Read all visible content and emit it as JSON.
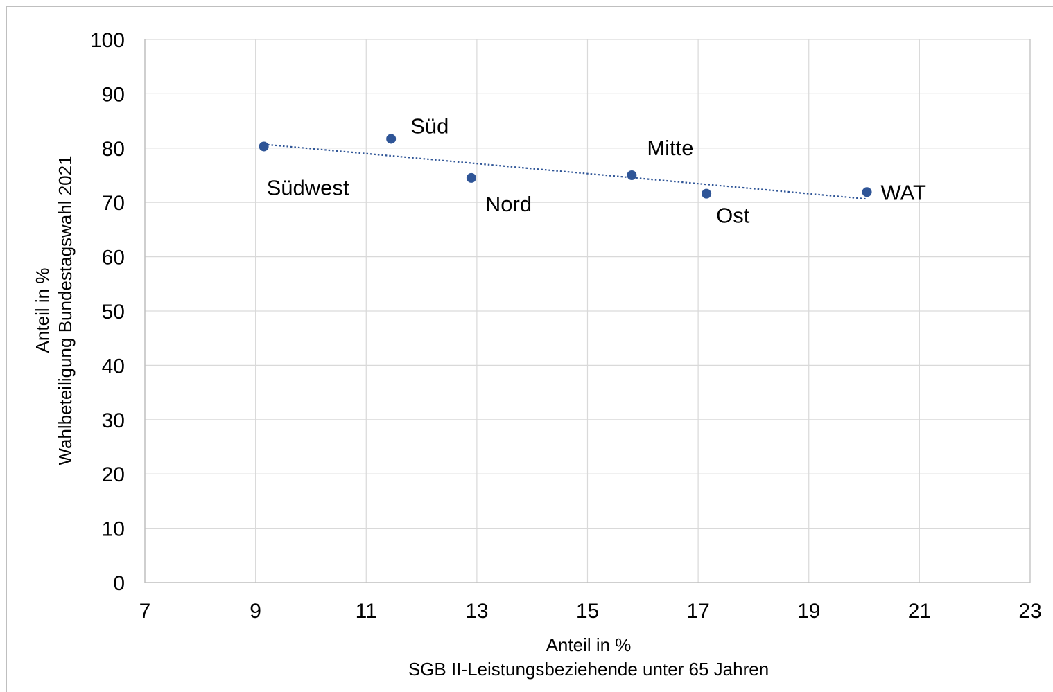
{
  "chart_data": {
    "type": "scatter",
    "title": "",
    "xlabel": [
      "Anteil in %",
      "SGB II-Leistungsbeziehende unter 65 Jahren"
    ],
    "ylabel": [
      "Anteil in %",
      "Wahlbeteiligung Bundestagswahl 2021"
    ],
    "xlim": [
      7,
      23
    ],
    "ylim": [
      0,
      100
    ],
    "xticks": [
      "7",
      "9",
      "11",
      "13",
      "15",
      "17",
      "19",
      "21",
      "23"
    ],
    "yticks": [
      "0",
      "10",
      "20",
      "30",
      "40",
      "50",
      "60",
      "70",
      "80",
      "90",
      "100"
    ],
    "grid": true,
    "trendline": "linear",
    "points": [
      {
        "label": "Südwest",
        "x": 9.15,
        "y": 80.3
      },
      {
        "label": "Süd",
        "x": 11.45,
        "y": 81.7
      },
      {
        "label": "Nord",
        "x": 12.9,
        "y": 74.5
      },
      {
        "label": "Mitte",
        "x": 15.8,
        "y": 75.0
      },
      {
        "label": "Ost",
        "x": 17.15,
        "y": 71.6
      },
      {
        "label": "WAT",
        "x": 20.05,
        "y": 71.9
      }
    ],
    "colors": {
      "marker": "#2f5597",
      "trendline": "#2f5597",
      "grid": "#d9d9d9",
      "axis": "#bfbfbf"
    }
  }
}
